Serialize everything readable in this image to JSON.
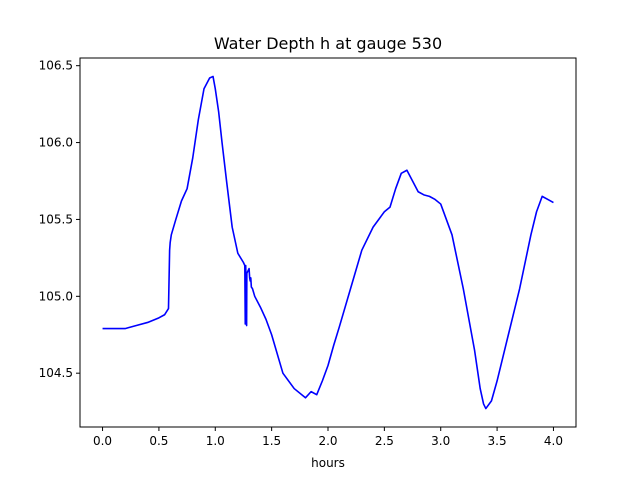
{
  "chart_data": {
    "type": "line",
    "title": "Water Depth h at gauge 530",
    "xlabel": "hours",
    "ylabel": "",
    "xlim": [
      -0.2,
      4.2
    ],
    "ylim": [
      104.15,
      106.55
    ],
    "xticks": [
      0.0,
      0.5,
      1.0,
      1.5,
      2.0,
      2.5,
      3.0,
      3.5,
      4.0
    ],
    "xtick_labels": [
      "0.0",
      "0.5",
      "1.0",
      "1.5",
      "2.0",
      "2.5",
      "3.0",
      "3.5",
      "4.0"
    ],
    "yticks": [
      104.5,
      105.0,
      105.5,
      106.0,
      106.5
    ],
    "ytick_labels": [
      "104.5",
      "105.0",
      "105.5",
      "106.0",
      "106.5"
    ],
    "grid": false,
    "series": [
      {
        "color": "#0000ff",
        "x": [
          0.0,
          0.2,
          0.3,
          0.4,
          0.5,
          0.55,
          0.585,
          0.595,
          0.6,
          0.61,
          0.65,
          0.7,
          0.75,
          0.8,
          0.85,
          0.9,
          0.95,
          0.98,
          1.0,
          1.03,
          1.06,
          1.1,
          1.15,
          1.2,
          1.25,
          1.262,
          1.266,
          1.27,
          1.278,
          1.28,
          1.3,
          1.305,
          1.31,
          1.315,
          1.32,
          1.33,
          1.35,
          1.4,
          1.45,
          1.5,
          1.6,
          1.7,
          1.8,
          1.85,
          1.9,
          1.95,
          2.0,
          2.05,
          2.1,
          2.2,
          2.3,
          2.4,
          2.5,
          2.55,
          2.6,
          2.65,
          2.7,
          2.75,
          2.8,
          2.85,
          2.9,
          2.95,
          3.0,
          3.1,
          3.2,
          3.3,
          3.35,
          3.38,
          3.4,
          3.45,
          3.5,
          3.6,
          3.7,
          3.8,
          3.85,
          3.9,
          3.95,
          4.0
        ],
        "y": [
          104.79,
          104.79,
          104.81,
          104.83,
          104.86,
          104.88,
          104.92,
          105.3,
          105.35,
          105.4,
          105.5,
          105.62,
          105.7,
          105.9,
          106.15,
          106.35,
          106.42,
          106.43,
          106.35,
          106.2,
          106.0,
          105.75,
          105.45,
          105.28,
          105.22,
          105.2,
          104.82,
          105.2,
          104.81,
          105.15,
          105.18,
          105.12,
          105.1,
          105.12,
          105.06,
          105.05,
          105.0,
          104.93,
          104.85,
          104.75,
          104.5,
          104.4,
          104.34,
          104.38,
          104.36,
          104.45,
          104.55,
          104.68,
          104.8,
          105.05,
          105.3,
          105.45,
          105.55,
          105.58,
          105.7,
          105.8,
          105.82,
          105.75,
          105.68,
          105.66,
          105.65,
          105.63,
          105.6,
          105.4,
          105.05,
          104.65,
          104.4,
          104.3,
          104.27,
          104.32,
          104.45,
          104.75,
          105.05,
          105.4,
          105.55,
          105.65,
          105.63,
          105.61
        ]
      }
    ]
  }
}
